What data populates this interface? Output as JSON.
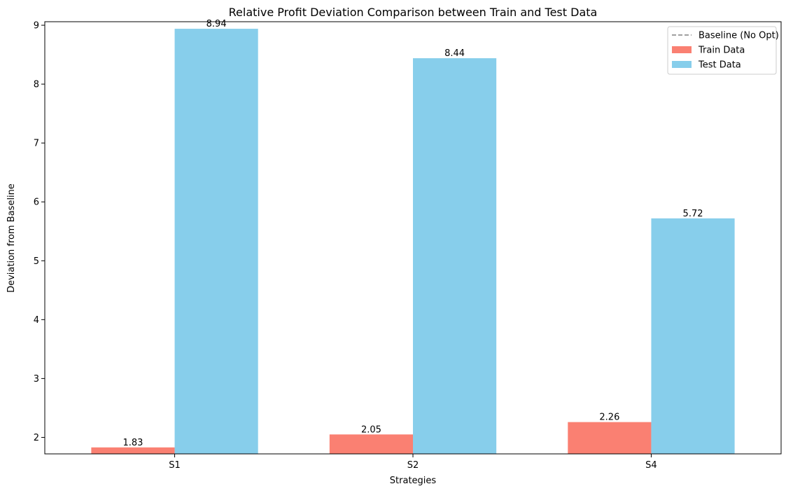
{
  "chart_data": {
    "type": "bar",
    "title": "Relative Profit Deviation Comparison between Train and Test Data",
    "xlabel": "Strategies",
    "ylabel": "Deviation from Baseline",
    "categories": [
      "S1",
      "S2",
      "S4"
    ],
    "series": [
      {
        "name": "Train Data",
        "color": "#FA8072",
        "values": [
          1.83,
          2.05,
          2.26
        ]
      },
      {
        "name": "Test Data",
        "color": "#87CEEB",
        "values": [
          8.94,
          8.44,
          5.72
        ]
      }
    ],
    "data_labels": {
      "Train Data": [
        "1.83",
        "2.05",
        "2.26"
      ],
      "Test Data": [
        "8.94",
        "8.44",
        "5.72"
      ]
    },
    "baseline": {
      "name": "Baseline (No Opt)",
      "value": 0,
      "color": "#808080",
      "style": "dashed"
    },
    "ylim": [
      1.72,
      9.06
    ],
    "yticks": [
      2,
      3,
      4,
      5,
      6,
      7,
      8,
      9
    ],
    "ytick_labels": [
      "2",
      "3",
      "4",
      "5",
      "6",
      "7",
      "8",
      "9"
    ],
    "legend_placement": "top-right",
    "grid": false
  }
}
